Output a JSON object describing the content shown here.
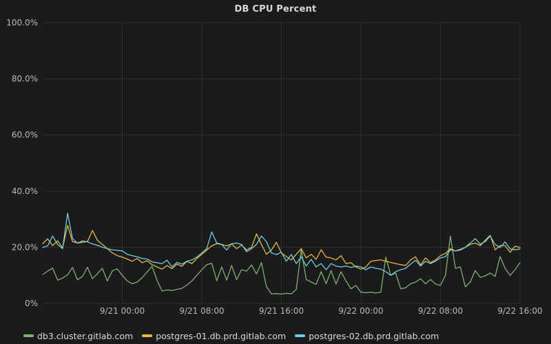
{
  "panel": {
    "title": "DB CPU Percent"
  },
  "colors": {
    "background": "#1b1b1d",
    "grid": "#2e2f31",
    "tick_text": "#b7babd",
    "title_text": "#d8d9da",
    "legend_text": "#d8d9da"
  },
  "chart_data": {
    "type": "line",
    "title": "DB CPU Percent",
    "xlabel": "",
    "ylabel": "",
    "ylim": [
      0,
      100
    ],
    "grid": true,
    "legend_position": "bottom-left",
    "y_ticks": [
      {
        "value": 0,
        "label": "0%"
      },
      {
        "value": 20,
        "label": "20.0%"
      },
      {
        "value": 40,
        "label": "40.0%"
      },
      {
        "value": 60,
        "label": "60.0%"
      },
      {
        "value": 80,
        "label": "80.0%"
      },
      {
        "value": 100,
        "label": "100.0%"
      }
    ],
    "x_range_hours": [
      0,
      48
    ],
    "x_start_time": "9/20 16:00",
    "sample_interval_minutes": 30,
    "x_ticks": [
      {
        "hour": 8,
        "label": "9/21 00:00"
      },
      {
        "hour": 16,
        "label": "9/21 08:00"
      },
      {
        "hour": 24,
        "label": "9/21 16:00"
      },
      {
        "hour": 32,
        "label": "9/22 00:00"
      },
      {
        "hour": 40,
        "label": "9/22 08:00"
      },
      {
        "hour": 48,
        "label": "9/22 16:00"
      }
    ],
    "series": [
      {
        "name": "db3.cluster.gitlab.com",
        "color": "#7eb26d",
        "values": [
          10.3,
          11.5,
          12.6,
          8.3,
          9.0,
          10.2,
          12.8,
          8.4,
          9.6,
          12.9,
          8.8,
          10.6,
          12.5,
          8.0,
          11.6,
          12.3,
          10.0,
          8.0,
          7.0,
          7.6,
          9.2,
          11.2,
          13.2,
          8.2,
          4.4,
          4.8,
          4.6,
          5.0,
          5.4,
          6.5,
          8.0,
          10.0,
          12.0,
          13.8,
          14.3,
          8.1,
          13.0,
          8.3,
          13.5,
          8.5,
          12.0,
          11.5,
          13.7,
          10.5,
          14.5,
          6.0,
          3.4,
          3.5,
          3.3,
          3.6,
          3.4,
          5.0,
          19.1,
          8.5,
          7.6,
          6.8,
          11.3,
          7.0,
          11.7,
          6.9,
          11.3,
          8.0,
          5.2,
          6.4,
          4.0,
          3.8,
          4.0,
          3.7,
          4.0,
          16.5,
          10.0,
          10.8,
          5.2,
          5.6,
          7.0,
          7.6,
          8.8,
          7.0,
          8.5,
          6.9,
          6.4,
          10.0,
          24.0,
          12.5,
          13.0,
          5.9,
          7.6,
          11.7,
          9.3,
          9.8,
          10.8,
          9.6,
          16.7,
          12.5,
          10.0,
          12.0,
          14.5
        ]
      },
      {
        "name": "postgres-01.db.prd.gitlab.com",
        "color": "#eab839",
        "values": [
          21.3,
          23.0,
          20.6,
          22.3,
          19.8,
          27.8,
          22.0,
          21.5,
          21.8,
          22.0,
          26.0,
          22.5,
          21.0,
          19.5,
          18.0,
          17.0,
          16.5,
          15.8,
          15.0,
          16.0,
          14.5,
          15.2,
          13.8,
          13.0,
          12.2,
          13.5,
          12.4,
          14.0,
          13.2,
          15.0,
          14.2,
          16.0,
          17.5,
          19.0,
          20.5,
          21.3,
          21.0,
          20.5,
          21.2,
          19.5,
          20.8,
          19.0,
          20.0,
          24.8,
          21.0,
          17.5,
          19.0,
          21.8,
          18.0,
          16.7,
          15.5,
          17.5,
          19.5,
          16.2,
          17.5,
          15.7,
          19.1,
          16.5,
          16.2,
          15.5,
          17.0,
          14.2,
          14.5,
          13.0,
          12.2,
          13.0,
          15.0,
          15.3,
          15.5,
          15.0,
          14.6,
          14.2,
          13.8,
          13.5,
          15.5,
          16.6,
          13.7,
          16.2,
          14.5,
          15.5,
          17.0,
          17.8,
          19.5,
          18.7,
          19.0,
          20.0,
          21.0,
          21.5,
          20.6,
          22.5,
          24.3,
          19.1,
          20.6,
          20.6,
          18.2,
          20.4,
          19.9
        ]
      },
      {
        "name": "postgres-02.db.prd.gitlab.com",
        "color": "#6ed0e0",
        "values": [
          19.9,
          20.5,
          24.0,
          21.0,
          19.5,
          32.1,
          23.1,
          21.5,
          22.3,
          21.9,
          21.2,
          20.7,
          20.0,
          19.5,
          19.1,
          18.9,
          18.7,
          17.5,
          17.0,
          16.6,
          16.0,
          15.8,
          14.8,
          14.5,
          14.2,
          15.4,
          13.0,
          14.6,
          14.0,
          15.0,
          15.5,
          16.5,
          18.0,
          19.5,
          25.5,
          21.5,
          21.0,
          19.0,
          21.3,
          21.5,
          21.0,
          18.4,
          19.5,
          21.0,
          24.0,
          22.0,
          18.0,
          17.4,
          18.2,
          15.0,
          17.4,
          14.2,
          16.6,
          13.3,
          15.7,
          13.0,
          14.2,
          12.0,
          14.2,
          13.3,
          13.0,
          13.3,
          12.8,
          13.3,
          13.0,
          12.0,
          13.0,
          12.5,
          12.2,
          11.3,
          10.0,
          11.3,
          12.0,
          12.5,
          14.0,
          15.4,
          13.3,
          15.0,
          14.2,
          15.0,
          16.2,
          16.6,
          19.1,
          18.7,
          19.3,
          20.0,
          21.5,
          23.1,
          21.1,
          22.0,
          24.0,
          21.0,
          19.9,
          21.9,
          19.4,
          19.1,
          19.4
        ]
      }
    ]
  }
}
